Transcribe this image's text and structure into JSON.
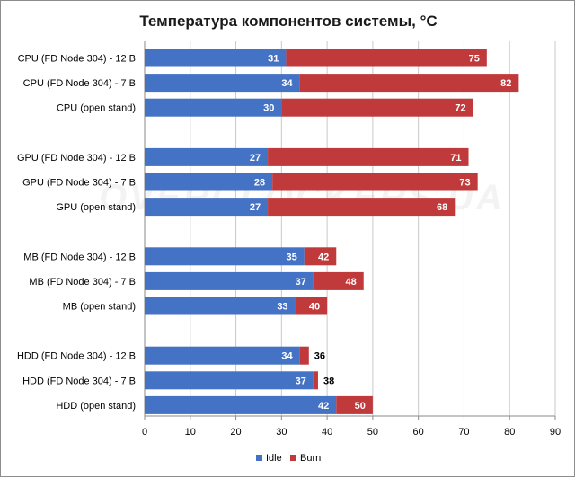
{
  "chart_data": {
    "type": "bar",
    "orientation": "horizontal",
    "title": "Температура компонентов системы, °C",
    "xlabel": "",
    "ylabel": "",
    "xlim": [
      0,
      90
    ],
    "xticks": [
      0,
      10,
      20,
      30,
      40,
      50,
      60,
      70,
      80,
      90
    ],
    "grid": true,
    "legend_position": "bottom-center",
    "categories": [
      "CPU (FD Node 304) - 12 В",
      "CPU (FD Node 304) - 7 В",
      "CPU (open stand)",
      "",
      "GPU (FD Node 304) - 12 В",
      "GPU (FD Node 304) - 7 В",
      "GPU (open stand)",
      "",
      "MB (FD Node 304) - 12 В",
      "MB (FD Node 304) - 7 В",
      "MB (open stand)",
      "",
      "HDD (FD Node 304) - 12 В",
      "HDD (FD Node 304) - 7 В",
      "HDD (open stand)"
    ],
    "series": [
      {
        "name": "Idle",
        "color": "#4472c4",
        "values": [
          31,
          34,
          30,
          null,
          27,
          28,
          27,
          null,
          35,
          37,
          33,
          null,
          34,
          37,
          42
        ]
      },
      {
        "name": "Burn",
        "color": "#c0393b",
        "values": [
          75,
          82,
          72,
          null,
          71,
          73,
          68,
          null,
          42,
          48,
          40,
          null,
          36,
          38,
          50
        ]
      }
    ],
    "watermark": "OVERCLOCKERS.UA"
  }
}
